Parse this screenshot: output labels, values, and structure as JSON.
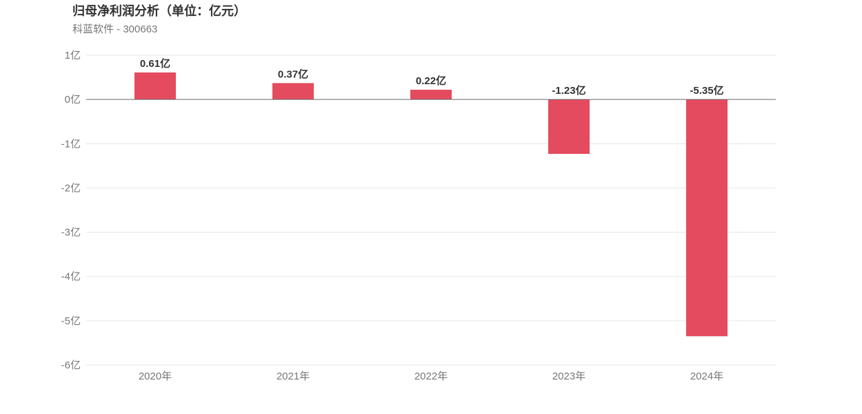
{
  "header": {
    "title": "归母净利润分析（单位：亿元）",
    "subtitle": "科蓝软件 - 300663"
  },
  "chart_data": {
    "type": "bar",
    "title": "归母净利润分析（单位：亿元）",
    "subtitle": "科蓝软件 - 300663",
    "categories": [
      "2020年",
      "2021年",
      "2022年",
      "2023年",
      "2024年"
    ],
    "values": [
      0.61,
      0.37,
      0.22,
      -1.23,
      -5.35
    ],
    "data_labels": [
      "0.61亿",
      "0.37亿",
      "0.22亿",
      "-1.23亿",
      "-5.35亿"
    ],
    "yticks": [
      1,
      0,
      -1,
      -2,
      -3,
      -4,
      -5,
      -6
    ],
    "ytick_labels": [
      "1亿",
      "0亿",
      "-1亿",
      "-2亿",
      "-3亿",
      "-4亿",
      "-5亿",
      "-6亿"
    ],
    "ylim": [
      -6,
      1
    ],
    "xlabel": "",
    "ylabel": "",
    "grid": true,
    "legend": "none",
    "colors": {
      "bar": "#e54b5e",
      "grid": "#e6e6e6",
      "zero_line": "#666666"
    }
  }
}
